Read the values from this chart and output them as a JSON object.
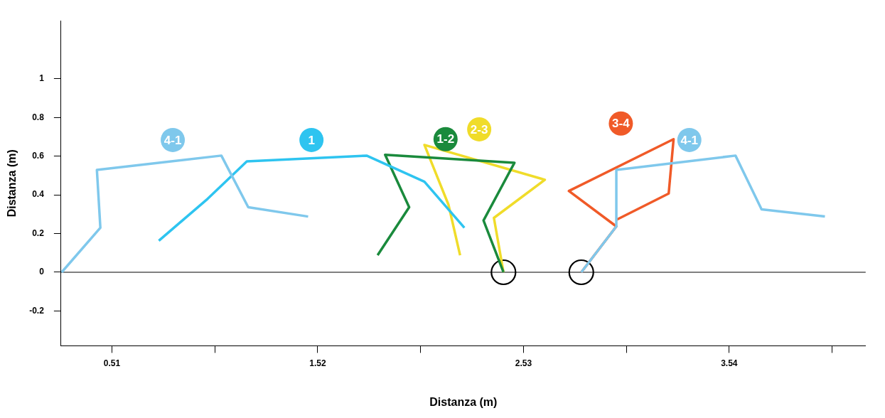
{
  "chart_data": {
    "type": "line",
    "xlabel": "Distanza (m)",
    "ylabel": "Distanza (m)",
    "xlim": [
      0.26,
      4.21
    ],
    "ylim": [
      -0.38,
      1.3
    ],
    "xticks": [
      0.51,
      {
        "value": 1.015,
        "label": null
      },
      1.52,
      {
        "value": 2.025,
        "label": null
      },
      2.53,
      {
        "value": 3.035,
        "label": null
      },
      3.54,
      {
        "value": 4.045,
        "label": null
      }
    ],
    "yticks": [
      -0.2,
      0,
      0.2,
      0.4,
      0.6,
      0.8,
      1
    ],
    "grid": false,
    "legend": false,
    "marker": "none",
    "line_style": "solid",
    "ref_lines": [
      {
        "axis": "y",
        "value": 0,
        "color": "#000000"
      }
    ],
    "series": [
      {
        "name": "4-1",
        "color": "#7fc8ec",
        "x": [
          0.263,
          0.453,
          0.436,
          1.047,
          1.179,
          1.473
        ],
        "values": [
          0,
          0.23,
          0.529,
          0.603,
          0.336,
          0.288
        ]
      },
      {
        "name": "1",
        "color": "#2ec4f0",
        "x": [
          0.74,
          0.98,
          1.172,
          1.76,
          2.044,
          2.24
        ],
        "values": [
          0.163,
          0.38,
          0.573,
          0.603,
          0.468,
          0.23
        ]
      },
      {
        "name": "1-2",
        "color": "#1a8a3c",
        "x": [
          1.814,
          1.969,
          1.851,
          2.486,
          2.334,
          2.432
        ],
        "values": [
          0.088,
          0.336,
          0.607,
          0.566,
          0.268,
          0
        ]
      },
      {
        "name": "2-3",
        "color": "#f0dc2a",
        "x": [
          2.219,
          2.162,
          2.044,
          2.635,
          2.385,
          2.432
        ],
        "values": [
          0.088,
          0.349,
          0.658,
          0.478,
          0.281,
          0
        ]
      },
      {
        "name": "4-1",
        "color": "#7fc8ec",
        "x": [
          2.814,
          2.986,
          2.986,
          3.571,
          3.699,
          4.01
        ],
        "values": [
          0,
          0.237,
          0.529,
          0.603,
          0.325,
          0.288
        ]
      },
      {
        "name": "3-4",
        "color": "#f05a28",
        "x": [
          2.814,
          2.986,
          2.753,
          3.267,
          3.243,
          2.986
        ],
        "values": [
          0,
          0.237,
          0.42,
          0.688,
          0.407,
          0.271
        ]
      },
      {
        "type": "scatter",
        "marker": "circle",
        "color": "#000000",
        "x": [
          2.432,
          2.814
        ],
        "values": [
          0,
          0
        ]
      }
    ]
  }
}
